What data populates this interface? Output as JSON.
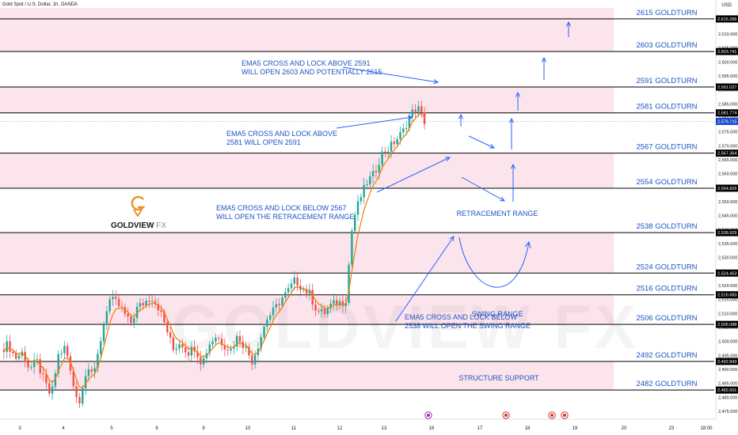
{
  "header": {
    "symbol": "Gold Spot / U.S. Dollar, 1h, OANDA",
    "currency": "USD"
  },
  "logo": {
    "name": "GOLDVIEW",
    "suffix": "FX"
  },
  "watermark": "GOLDVIEW FX",
  "colors": {
    "band": "#fce4ec",
    "level_line": "#000000",
    "blue": "#2962ff",
    "up": "#26a69a",
    "down": "#ef5350",
    "ema": "#f57c00",
    "label": "#1e53c8"
  },
  "chart_data": {
    "type": "candlestick",
    "title": "Gold Spot / U.S. Dollar, 1h, OANDA",
    "ylim": [
      2470,
      2620
    ],
    "y_ticks": [
      2475,
      2480,
      2485,
      2490,
      2495,
      2500,
      2505,
      2510,
      2515,
      2520,
      2525,
      2530,
      2535,
      2540,
      2545,
      2550,
      2555,
      2560,
      2565,
      2570,
      2575,
      2580,
      2585,
      2590,
      2595,
      2600,
      2605,
      2610
    ],
    "x_ticks": [
      "3",
      "4",
      "5",
      "6",
      "9",
      "10",
      "11",
      "12",
      "13",
      "16",
      "17",
      "18",
      "19",
      "20",
      "23",
      "18:00"
    ],
    "price_tags": [
      "2,615.396",
      "2,603.741",
      "2,591.027",
      "2,581.774",
      "2,578.715",
      "2,567.364",
      "2,554.826",
      "2,538.929",
      "2,524.453",
      "2,516.683",
      "2,506.088",
      "2,492.843",
      "2,482.601"
    ],
    "levels": [
      {
        "value": 2615.396,
        "label": "2615 GOLDTURN"
      },
      {
        "value": 2603.741,
        "label": "2603 GOLDTURN"
      },
      {
        "value": 2591.027,
        "label": "2591 GOLDTURN"
      },
      {
        "value": 2581.774,
        "label": "2581 GOLDTURN"
      },
      {
        "value": 2567.364,
        "label": "2567 GOLDTURN"
      },
      {
        "value": 2554.826,
        "label": "2554 GOLDTURN"
      },
      {
        "value": 2538.929,
        "label": "2538 GOLDTURN"
      },
      {
        "value": 2524.453,
        "label": "2524 GOLDTURN"
      },
      {
        "value": 2516.683,
        "label": "2516 GOLDTURN"
      },
      {
        "value": 2506.088,
        "label": "2506 GOLDTURN"
      },
      {
        "value": 2492.843,
        "label": "2492 GOLDTURN"
      },
      {
        "value": 2482.601,
        "label": "2482 GOLDTURN"
      }
    ],
    "last_price": 2578.715,
    "annotations": [
      {
        "text": [
          "EMA5 CROSS AND LOCK ABOVE 2591",
          "WILL OPEN 2603 AND POTENTIALLY 2615"
        ]
      },
      {
        "text": [
          "EMA5 CROSS AND LOCK ABOVE",
          "2581 WILL OPEN 2591"
        ]
      },
      {
        "text": [
          "EMA5 CROSS AND LOCK BELOW 2567",
          "WILL OPEN THE RETRACEMENT RANGE"
        ]
      },
      {
        "text": [
          "EMA5 CROSS AND LOCK BELOW",
          "2538 WILL OPEN THE SWING RANGE"
        ]
      },
      {
        "text": [
          "RETRACEMENT RANGE"
        ]
      },
      {
        "text": [
          "SWING RANGE"
        ]
      },
      {
        "text": [
          "STRUCTURE SUPPORT"
        ]
      }
    ],
    "price_path": [
      2497,
      2499,
      2494,
      2496,
      2490,
      2493,
      2486,
      2480,
      2495,
      2498,
      2485,
      2478,
      2492,
      2488,
      2502,
      2515,
      2514,
      2511,
      2506,
      2512,
      2514,
      2516,
      2512,
      2505,
      2497,
      2500,
      2496,
      2498,
      2492,
      2499,
      2502,
      2499,
      2497,
      2502,
      2498,
      2493,
      2500,
      2508,
      2511,
      2515,
      2518,
      2522,
      2519,
      2517,
      2511,
      2510,
      2513,
      2514,
      2514,
      2543,
      2551,
      2557,
      2560,
      2567,
      2569,
      2572,
      2575,
      2581,
      2584,
      2578.7
    ]
  }
}
